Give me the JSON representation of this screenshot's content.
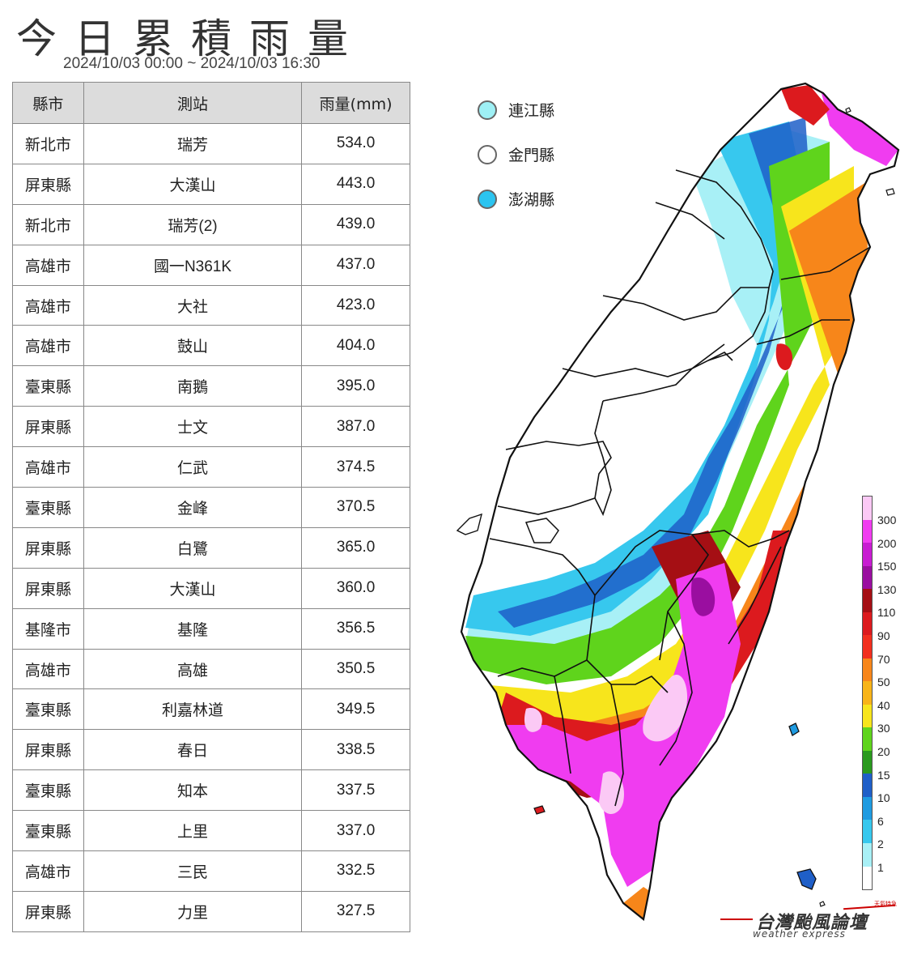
{
  "title": "今日累積雨量",
  "period": "2024/10/03 00:00 ~ 2024/10/03 16:30",
  "table": {
    "headers": [
      "縣市",
      "測站",
      "雨量(mm)"
    ],
    "rows": [
      [
        "新北市",
        "瑞芳",
        "534.0"
      ],
      [
        "屏東縣",
        "大漢山",
        "443.0"
      ],
      [
        "新北市",
        "瑞芳(2)",
        "439.0"
      ],
      [
        "高雄市",
        "國一N361K",
        "437.0"
      ],
      [
        "高雄市",
        "大社",
        "423.0"
      ],
      [
        "高雄市",
        "鼓山",
        "404.0"
      ],
      [
        "臺東縣",
        "南鵝",
        "395.0"
      ],
      [
        "屏東縣",
        "士文",
        "387.0"
      ],
      [
        "高雄市",
        "仁武",
        "374.5"
      ],
      [
        "臺東縣",
        "金峰",
        "370.5"
      ],
      [
        "屏東縣",
        "白鷺",
        "365.0"
      ],
      [
        "屏東縣",
        "大漢山",
        "360.0"
      ],
      [
        "基隆市",
        "基隆",
        "356.5"
      ],
      [
        "高雄市",
        "高雄",
        "350.5"
      ],
      [
        "臺東縣",
        "利嘉林道",
        "349.5"
      ],
      [
        "屏東縣",
        "春日",
        "338.5"
      ],
      [
        "臺東縣",
        "知本",
        "337.5"
      ],
      [
        "臺東縣",
        "上里",
        "337.0"
      ],
      [
        "高雄市",
        "三民",
        "332.5"
      ],
      [
        "屏東縣",
        "力里",
        "327.5"
      ]
    ]
  },
  "islands": [
    {
      "name": "連江縣",
      "color": "#9ef0f5"
    },
    {
      "name": "金門縣",
      "color": "#ffffff"
    },
    {
      "name": "澎湖縣",
      "color": "#2bc4f0"
    }
  ],
  "legend": {
    "labels": [
      "300",
      "200",
      "150",
      "130",
      "110",
      "90",
      "70",
      "50",
      "40",
      "30",
      "20",
      "15",
      "10",
      "6",
      "2",
      "1"
    ],
    "colors": [
      "#fbc9f5",
      "#f03cf0",
      "#c81cd2",
      "#9a0ea0",
      "#a50f14",
      "#dc1a1e",
      "#f22f1e",
      "#f7861a",
      "#f8b418",
      "#f7e51c",
      "#5fd41c",
      "#2a9a1e",
      "#1f5fc8",
      "#1f9be1",
      "#37c8ee",
      "#a8f0f6",
      "#ffffff"
    ]
  },
  "logo": {
    "main": "台灣颱風論壇",
    "sub": "weather express",
    "tag": "天氣特急"
  }
}
